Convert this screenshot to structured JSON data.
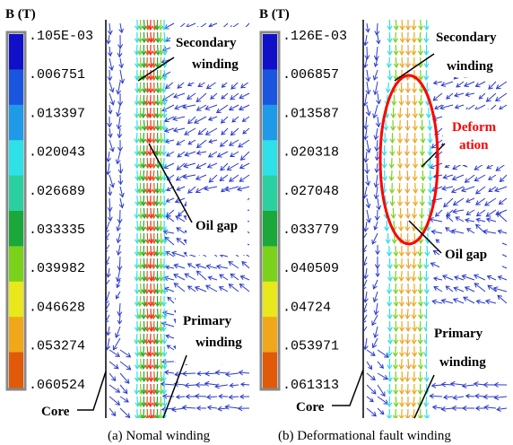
{
  "panels": [
    {
      "id": "a",
      "unit_label": "B (T)",
      "scale_ticks": [
        ".105E-03",
        ".006751",
        ".013397",
        ".020043",
        ".026689",
        ".033335",
        ".039982",
        ".046628",
        ".053274",
        ".060524"
      ],
      "caption": "(a) Nomal winding",
      "callouts": {
        "secondary": [
          "Secondary",
          "winding"
        ],
        "oil_gap": "Oil gap",
        "primary": [
          "Primary",
          "winding"
        ],
        "core": "Core"
      }
    },
    {
      "id": "b",
      "unit_label": "B (T)",
      "scale_ticks": [
        ".126E-03",
        ".006857",
        ".013587",
        ".020318",
        ".027048",
        ".033779",
        ".040509",
        ".04724",
        ".053971",
        ".061313"
      ],
      "caption": "(b) Deformational fault winding",
      "callouts": {
        "secondary": [
          "Secondary",
          "winding"
        ],
        "deformation": [
          "Deform",
          "ation"
        ],
        "oil_gap": "Oil gap",
        "primary": [
          "Primary",
          "winding"
        ],
        "core": "Core"
      }
    }
  ],
  "colors": {
    "scale": [
      "#1010c8",
      "#1a55e0",
      "#1f9ae8",
      "#2ee0e8",
      "#2ad0a0",
      "#1aa83a",
      "#7ad21a",
      "#e8e81a",
      "#f0a81a",
      "#e05a0a"
    ],
    "vector": "#2a3ad0",
    "deformation": "#ff0000",
    "core_line": "#000000"
  }
}
